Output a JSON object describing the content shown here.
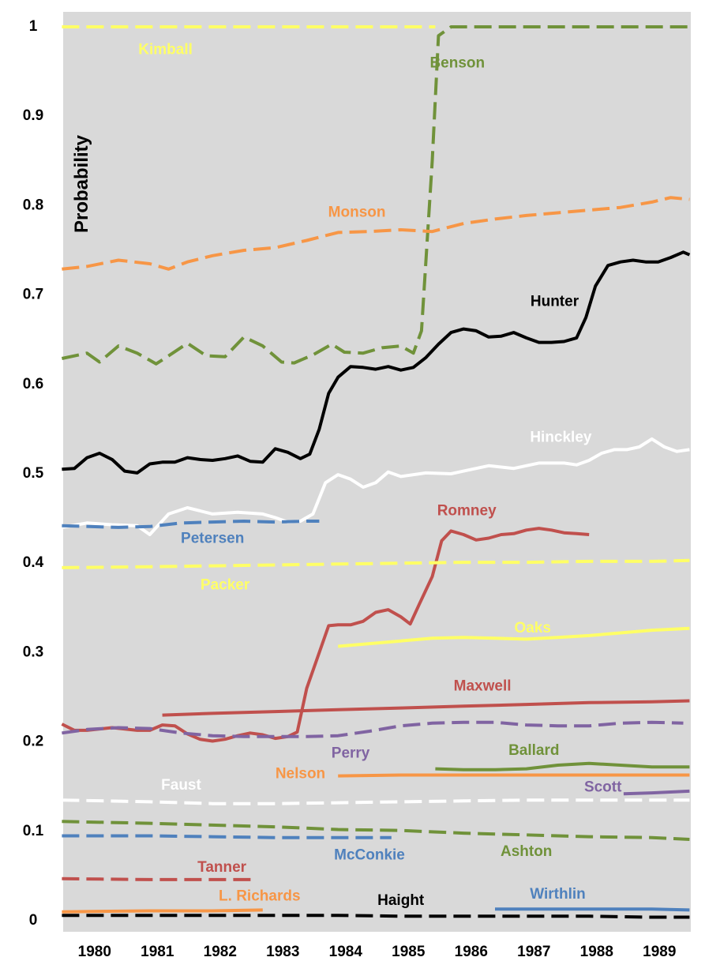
{
  "chart_data": {
    "type": "line",
    "title": "",
    "xlabel": "",
    "ylabel": "Probability",
    "xlim": [
      1979.62,
      1989.62
    ],
    "ylim": [
      0,
      1
    ],
    "x_ticks": [
      "1980",
      "1981",
      "1982",
      "1983",
      "1984",
      "1985",
      "1986",
      "1987",
      "1988",
      "1989"
    ],
    "y_ticks": [
      "0",
      "0.1",
      "0.2",
      "0.3",
      "0.4",
      "0.5",
      "0.6",
      "0.7",
      "0.8",
      "0.9",
      "1"
    ],
    "grid": false,
    "background": "#d9d9d9",
    "series": [
      {
        "name": "Kimball",
        "color": "#ffff66",
        "dash": true,
        "x": [
          1979.6,
          1985.55
        ],
        "y": [
          1.0,
          1.0
        ]
      },
      {
        "name": "Benson",
        "color": "#70923a",
        "dash": true,
        "x": [
          1979.6,
          1980.0,
          1980.2,
          1980.5,
          1980.8,
          1981.1,
          1981.3,
          1981.6,
          1981.9,
          1982.2,
          1982.5,
          1982.8,
          1983.1,
          1983.3,
          1983.6,
          1983.9,
          1984.1,
          1984.4,
          1984.7,
          1985.0,
          1985.2,
          1985.33,
          1985.5,
          1985.6,
          1985.8,
          1986.0,
          1987.0,
          1988.0,
          1989.0,
          1989.6
        ],
        "y": [
          0.629,
          0.635,
          0.625,
          0.643,
          0.635,
          0.623,
          0.632,
          0.646,
          0.632,
          0.631,
          0.653,
          0.643,
          0.625,
          0.624,
          0.633,
          0.645,
          0.636,
          0.635,
          0.641,
          0.643,
          0.635,
          0.66,
          0.85,
          0.99,
          1.0,
          1.0,
          1.0,
          1.0,
          1.0,
          1.0
        ]
      },
      {
        "name": "Monson",
        "color": "#f79646",
        "dash": true,
        "x": [
          1979.6,
          1980.0,
          1980.5,
          1981.0,
          1981.3,
          1981.6,
          1982.0,
          1982.5,
          1983.0,
          1983.5,
          1984.0,
          1984.5,
          1985.0,
          1985.5,
          1986.0,
          1986.5,
          1987.0,
          1987.5,
          1988.0,
          1988.5,
          1989.0,
          1989.3,
          1989.6
        ],
        "y": [
          0.729,
          0.732,
          0.739,
          0.735,
          0.729,
          0.737,
          0.744,
          0.75,
          0.753,
          0.761,
          0.77,
          0.771,
          0.773,
          0.771,
          0.78,
          0.785,
          0.789,
          0.792,
          0.795,
          0.798,
          0.804,
          0.809,
          0.807
        ]
      },
      {
        "name": "Hunter",
        "color": "#000000",
        "dash": false,
        "x": [
          1979.6,
          1979.8,
          1980.0,
          1980.2,
          1980.4,
          1980.6,
          1980.8,
          1981.0,
          1981.2,
          1981.4,
          1981.6,
          1981.8,
          1982.0,
          1982.2,
          1982.4,
          1982.6,
          1982.8,
          1983.0,
          1983.2,
          1983.4,
          1983.55,
          1983.7,
          1983.85,
          1984.0,
          1984.2,
          1984.4,
          1984.6,
          1984.8,
          1985.0,
          1985.2,
          1985.4,
          1985.6,
          1985.8,
          1986.0,
          1986.2,
          1986.4,
          1986.6,
          1986.8,
          1987.0,
          1987.2,
          1987.4,
          1987.6,
          1987.8,
          1987.95,
          1988.1,
          1988.3,
          1988.5,
          1988.7,
          1988.9,
          1989.1,
          1989.3,
          1989.5,
          1989.6
        ],
        "y": [
          0.505,
          0.506,
          0.518,
          0.523,
          0.516,
          0.503,
          0.501,
          0.511,
          0.513,
          0.513,
          0.518,
          0.516,
          0.515,
          0.517,
          0.52,
          0.514,
          0.513,
          0.528,
          0.524,
          0.517,
          0.522,
          0.55,
          0.59,
          0.608,
          0.62,
          0.619,
          0.617,
          0.62,
          0.616,
          0.619,
          0.63,
          0.645,
          0.658,
          0.662,
          0.66,
          0.653,
          0.654,
          0.658,
          0.652,
          0.647,
          0.647,
          0.648,
          0.652,
          0.675,
          0.71,
          0.733,
          0.737,
          0.739,
          0.737,
          0.737,
          0.742,
          0.748,
          0.745
        ]
      },
      {
        "name": "Hinckley",
        "color": "#ffffff",
        "dash": false,
        "x": [
          1979.6,
          1980.0,
          1980.4,
          1980.8,
          1981.0,
          1981.3,
          1981.6,
          1982.0,
          1982.4,
          1982.8,
          1983.0,
          1983.2,
          1983.4,
          1983.6,
          1983.8,
          1984.0,
          1984.2,
          1984.4,
          1984.6,
          1984.8,
          1985.0,
          1985.4,
          1985.8,
          1986.0,
          1986.4,
          1986.8,
          1987.2,
          1987.6,
          1987.8,
          1988.0,
          1988.2,
          1988.4,
          1988.6,
          1988.8,
          1989.0,
          1989.2,
          1989.4,
          1989.6
        ],
        "y": [
          0.44,
          0.445,
          0.443,
          0.442,
          0.432,
          0.455,
          0.462,
          0.455,
          0.457,
          0.455,
          0.451,
          0.446,
          0.447,
          0.455,
          0.49,
          0.499,
          0.494,
          0.485,
          0.49,
          0.502,
          0.497,
          0.501,
          0.5,
          0.503,
          0.509,
          0.506,
          0.512,
          0.512,
          0.51,
          0.515,
          0.523,
          0.527,
          0.527,
          0.53,
          0.539,
          0.53,
          0.525,
          0.527
        ]
      },
      {
        "name": "Petersen",
        "color": "#4f81bd",
        "dash": true,
        "x": [
          1979.6,
          1980.5,
          1981.0,
          1981.5,
          1982.0,
          1982.5,
          1983.0,
          1983.5,
          1983.7
        ],
        "y": [
          0.442,
          0.44,
          0.441,
          0.445,
          0.446,
          0.447,
          0.446,
          0.447,
          0.447
        ]
      },
      {
        "name": "Romney",
        "color": "#c0504d",
        "dash": false,
        "x": [
          1979.6,
          1979.8,
          1980.0,
          1980.4,
          1980.8,
          1981.0,
          1981.2,
          1981.4,
          1981.6,
          1981.8,
          1982.0,
          1982.2,
          1982.4,
          1982.6,
          1982.8,
          1983.0,
          1983.2,
          1983.35,
          1983.5,
          1983.7,
          1983.85,
          1984.0,
          1984.2,
          1984.4,
          1984.6,
          1984.8,
          1985.0,
          1985.15,
          1985.3,
          1985.5,
          1985.65,
          1985.8,
          1986.0,
          1986.2,
          1986.4,
          1986.6,
          1986.8,
          1987.0,
          1987.2,
          1987.4,
          1987.6,
          1987.8,
          1988.0
        ],
        "y": [
          0.22,
          0.213,
          0.213,
          0.216,
          0.213,
          0.213,
          0.219,
          0.218,
          0.209,
          0.203,
          0.201,
          0.203,
          0.207,
          0.21,
          0.208,
          0.204,
          0.206,
          0.211,
          0.26,
          0.3,
          0.33,
          0.331,
          0.331,
          0.335,
          0.345,
          0.348,
          0.34,
          0.332,
          0.355,
          0.385,
          0.425,
          0.436,
          0.432,
          0.426,
          0.428,
          0.432,
          0.433,
          0.437,
          0.439,
          0.437,
          0.434,
          0.433,
          0.432
        ]
      },
      {
        "name": "Packer",
        "color": "#ffff66",
        "dash": true,
        "x": [
          1979.6,
          1981.0,
          1982.0,
          1983.0,
          1984.0,
          1985.0,
          1986.0,
          1987.0,
          1988.0,
          1989.0,
          1989.6
        ],
        "y": [
          0.395,
          0.396,
          0.397,
          0.398,
          0.399,
          0.4,
          0.401,
          0.401,
          0.402,
          0.402,
          0.403
        ]
      },
      {
        "name": "Oaks",
        "color": "#ffff66",
        "dash": false,
        "x": [
          1984.0,
          1984.5,
          1985.0,
          1985.5,
          1986.0,
          1986.5,
          1987.0,
          1987.5,
          1988.0,
          1988.5,
          1989.0,
          1989.6
        ],
        "y": [
          0.307,
          0.31,
          0.313,
          0.316,
          0.317,
          0.316,
          0.315,
          0.317,
          0.319,
          0.322,
          0.325,
          0.327
        ]
      },
      {
        "name": "Maxwell",
        "color": "#c0504d",
        "dash": false,
        "x": [
          1981.2,
          1982.0,
          1983.0,
          1984.0,
          1985.0,
          1986.0,
          1987.0,
          1988.0,
          1989.0,
          1989.6
        ],
        "y": [
          0.23,
          0.232,
          0.234,
          0.236,
          0.238,
          0.24,
          0.242,
          0.244,
          0.245,
          0.246
        ]
      },
      {
        "name": "Perry",
        "color": "#8064a2",
        "dash": true,
        "x": [
          1979.6,
          1980.0,
          1980.5,
          1981.0,
          1981.5,
          1982.0,
          1982.5,
          1983.0,
          1983.5,
          1984.0,
          1984.5,
          1985.0,
          1985.5,
          1986.0,
          1986.5,
          1987.0,
          1987.5,
          1988.0,
          1988.5,
          1989.0,
          1989.5
        ],
        "y": [
          0.21,
          0.214,
          0.216,
          0.215,
          0.21,
          0.207,
          0.206,
          0.206,
          0.206,
          0.207,
          0.212,
          0.218,
          0.221,
          0.222,
          0.222,
          0.219,
          0.218,
          0.218,
          0.221,
          0.222,
          0.221
        ]
      },
      {
        "name": "Ballard",
        "color": "#70923a",
        "dash": false,
        "x": [
          1985.55,
          1986.0,
          1986.5,
          1987.0,
          1987.5,
          1988.0,
          1988.5,
          1989.0,
          1989.6
        ],
        "y": [
          0.17,
          0.169,
          0.169,
          0.17,
          0.174,
          0.176,
          0.174,
          0.172,
          0.172
        ]
      },
      {
        "name": "Nelson",
        "color": "#f79646",
        "dash": false,
        "x": [
          1984.0,
          1985.0,
          1986.0,
          1987.0,
          1988.0,
          1989.0,
          1989.6
        ],
        "y": [
          0.162,
          0.163,
          0.163,
          0.163,
          0.163,
          0.163,
          0.163
        ]
      },
      {
        "name": "Scott",
        "color": "#8064a2",
        "dash": false,
        "x": [
          1988.55,
          1989.0,
          1989.6
        ],
        "y": [
          0.142,
          0.143,
          0.145
        ]
      },
      {
        "name": "Faust",
        "color": "#ffffff",
        "dash": true,
        "x": [
          1979.6,
          1981.0,
          1982.0,
          1983.0,
          1984.0,
          1985.0,
          1986.0,
          1987.0,
          1988.0,
          1989.0,
          1989.6
        ],
        "y": [
          0.135,
          0.133,
          0.131,
          0.131,
          0.132,
          0.133,
          0.134,
          0.135,
          0.135,
          0.135,
          0.135
        ]
      },
      {
        "name": "Ashton",
        "color": "#70923a",
        "dash": true,
        "x": [
          1979.6,
          1981.0,
          1982.0,
          1983.0,
          1984.0,
          1985.0,
          1986.0,
          1987.0,
          1988.0,
          1989.0,
          1989.6
        ],
        "y": [
          0.111,
          0.109,
          0.107,
          0.105,
          0.102,
          0.101,
          0.098,
          0.096,
          0.094,
          0.093,
          0.091
        ]
      },
      {
        "name": "McConkie",
        "color": "#4f81bd",
        "dash": true,
        "x": [
          1979.6,
          1981.0,
          1982.0,
          1983.0,
          1984.0,
          1984.85
        ],
        "y": [
          0.095,
          0.095,
          0.094,
          0.093,
          0.093,
          0.093
        ]
      },
      {
        "name": "Tanner",
        "color": "#c0504d",
        "dash": true,
        "x": [
          1979.6,
          1981.0,
          1982.0,
          1982.65
        ],
        "y": [
          0.047,
          0.046,
          0.046,
          0.046
        ]
      },
      {
        "name": "L. Richards",
        "color": "#f79646",
        "dash": false,
        "x": [
          1979.6,
          1981.0,
          1982.0,
          1982.8
        ],
        "y": [
          0.01,
          0.011,
          0.011,
          0.012
        ]
      },
      {
        "name": "Haight",
        "color": "#000000",
        "dash": true,
        "x": [
          1979.6,
          1981.0,
          1982.0,
          1983.0,
          1984.0,
          1985.0,
          1986.0,
          1987.0,
          1988.0,
          1989.0,
          1989.6
        ],
        "y": [
          0.006,
          0.006,
          0.006,
          0.006,
          0.006,
          0.005,
          0.005,
          0.005,
          0.005,
          0.004,
          0.004
        ]
      },
      {
        "name": "Wirthlin",
        "color": "#4f81bd",
        "dash": false,
        "x": [
          1986.5,
          1987.0,
          1988.0,
          1989.0,
          1989.6
        ],
        "y": [
          0.013,
          0.013,
          0.013,
          0.013,
          0.012
        ]
      }
    ],
    "annotations": [
      {
        "text": "Kimball",
        "color": "#ffff66",
        "x": 1981.25,
        "y": 0.974
      },
      {
        "text": "Benson",
        "color": "#70923a",
        "x": 1985.9,
        "y": 0.959
      },
      {
        "text": "Monson",
        "color": "#f79646",
        "x": 1984.3,
        "y": 0.792
      },
      {
        "text": "Hunter",
        "color": "#000000",
        "x": 1987.45,
        "y": 0.692
      },
      {
        "text": "Hinckley",
        "color": "#ffffff",
        "x": 1987.55,
        "y": 0.54
      },
      {
        "text": "Romney",
        "color": "#c0504d",
        "x": 1986.05,
        "y": 0.458
      },
      {
        "text": "Petersen",
        "color": "#4f81bd",
        "x": 1982.0,
        "y": 0.427
      },
      {
        "text": "Packer",
        "color": "#ffff66",
        "x": 1982.2,
        "y": 0.375
      },
      {
        "text": "Oaks",
        "color": "#ffff66",
        "x": 1987.1,
        "y": 0.327
      },
      {
        "text": "Maxwell",
        "color": "#c0504d",
        "x": 1986.3,
        "y": 0.262
      },
      {
        "text": "Perry",
        "color": "#8064a2",
        "x": 1984.2,
        "y": 0.187
      },
      {
        "text": "Ballard",
        "color": "#70923a",
        "x": 1987.12,
        "y": 0.19
      },
      {
        "text": "Nelson",
        "color": "#f79646",
        "x": 1983.4,
        "y": 0.164
      },
      {
        "text": "Faust",
        "color": "#ffffff",
        "x": 1981.5,
        "y": 0.151
      },
      {
        "text": "Scott",
        "color": "#8064a2",
        "x": 1988.22,
        "y": 0.149
      },
      {
        "text": "McConkie",
        "color": "#4f81bd",
        "x": 1984.5,
        "y": 0.073
      },
      {
        "text": "Ashton",
        "color": "#70923a",
        "x": 1987.0,
        "y": 0.077
      },
      {
        "text": "Tanner",
        "color": "#c0504d",
        "x": 1982.15,
        "y": 0.059
      },
      {
        "text": "L. Richards",
        "color": "#f79646",
        "x": 1982.75,
        "y": 0.027
      },
      {
        "text": "Haight",
        "color": "#000000",
        "x": 1985.0,
        "y": 0.022
      },
      {
        "text": "Wirthlin",
        "color": "#4f81bd",
        "x": 1987.5,
        "y": 0.029
      }
    ]
  }
}
